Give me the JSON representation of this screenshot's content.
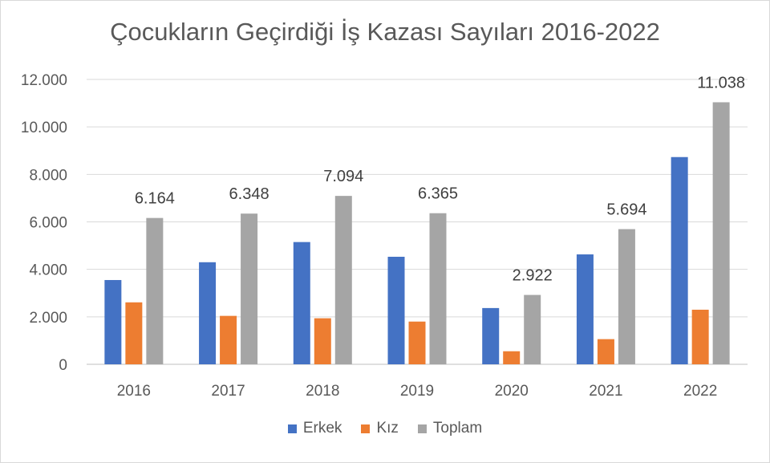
{
  "chart_data": {
    "type": "bar",
    "title": "Çocukların Geçirdiği İş Kazası Sayıları 2016-2022",
    "categories": [
      "2016",
      "2017",
      "2018",
      "2019",
      "2020",
      "2021",
      "2022"
    ],
    "series": [
      {
        "name": "Erkek",
        "color": "#4472c4",
        "values": [
          3550,
          4300,
          5150,
          4530,
          2370,
          4630,
          8730
        ]
      },
      {
        "name": "Kız",
        "color": "#ed7d31",
        "values": [
          2610,
          2040,
          1940,
          1800,
          550,
          1060,
          2300
        ]
      },
      {
        "name": "Toplam",
        "color": "#a5a5a5",
        "values": [
          6164,
          6348,
          7094,
          6365,
          2922,
          5694,
          11038
        ],
        "data_labels": [
          "6.164",
          "6.348",
          "7.094",
          "6.365",
          "2.922",
          "5.694",
          "11.038"
        ]
      }
    ],
    "y_ticks": [
      0,
      2000,
      4000,
      6000,
      8000,
      10000,
      12000
    ],
    "y_tick_labels": [
      "0",
      "2.000",
      "4.000",
      "6.000",
      "8.000",
      "10.000",
      "12.000"
    ],
    "ylim": [
      0,
      12000
    ],
    "grid": true,
    "legend_position": "bottom"
  }
}
